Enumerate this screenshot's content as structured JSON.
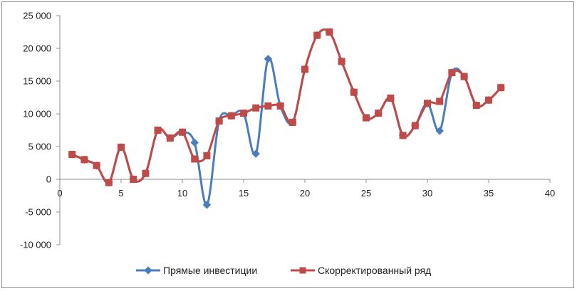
{
  "chart_data": {
    "type": "line",
    "title": "",
    "xlabel": "",
    "ylabel": "",
    "xlim": [
      0,
      40
    ],
    "ylim": [
      -10000,
      25000
    ],
    "x_ticks": [
      0,
      5,
      10,
      15,
      20,
      25,
      30,
      35,
      40
    ],
    "y_ticks": [
      -10000,
      -5000,
      0,
      5000,
      10000,
      15000,
      20000,
      25000
    ],
    "x_tick_labels": [
      "0",
      "5",
      "10",
      "15",
      "20",
      "25",
      "30",
      "35",
      "40"
    ],
    "y_tick_labels": [
      "-10 000",
      "-5 000",
      "0",
      "5 000",
      "10 000",
      "15 000",
      "20 000",
      "25 000"
    ],
    "grid": false,
    "legend_position": "bottom",
    "series": [
      {
        "name": "Прямые инвестиции",
        "color": "#4a7ebb",
        "marker": "diamond",
        "x": [
          1,
          2,
          3,
          4,
          5,
          6,
          7,
          8,
          9,
          10,
          11,
          12,
          13,
          14,
          15,
          16,
          17,
          18,
          19,
          20,
          21,
          22,
          23,
          24,
          25,
          26,
          27,
          28,
          29,
          30,
          31,
          32,
          33,
          34,
          35,
          36
        ],
        "values": [
          3800,
          3000,
          2100,
          -500,
          4900,
          0,
          900,
          7500,
          6300,
          7200,
          5600,
          -3900,
          8900,
          9700,
          10100,
          3900,
          18400,
          11200,
          8700,
          16800,
          22000,
          22500,
          18000,
          13300,
          9400,
          10100,
          12400,
          6700,
          8200,
          11600,
          7400,
          16300,
          15700,
          11300,
          12100,
          14000
        ]
      },
      {
        "name": "Скорректированный ряд",
        "color": "#be4b48",
        "marker": "square",
        "x": [
          1,
          2,
          3,
          4,
          5,
          6,
          7,
          8,
          9,
          10,
          11,
          12,
          13,
          14,
          15,
          16,
          17,
          18,
          19,
          20,
          21,
          22,
          23,
          24,
          25,
          26,
          27,
          28,
          29,
          30,
          31,
          32,
          33,
          34,
          35,
          36
        ],
        "values": [
          3800,
          3000,
          2100,
          -500,
          4900,
          0,
          900,
          7500,
          6300,
          7200,
          3100,
          3600,
          8900,
          9700,
          10100,
          10900,
          11200,
          11200,
          8700,
          16800,
          22000,
          22500,
          18000,
          13300,
          9400,
          10100,
          12400,
          6700,
          8200,
          11600,
          11900,
          16300,
          15700,
          11300,
          12100,
          14000
        ]
      }
    ]
  }
}
